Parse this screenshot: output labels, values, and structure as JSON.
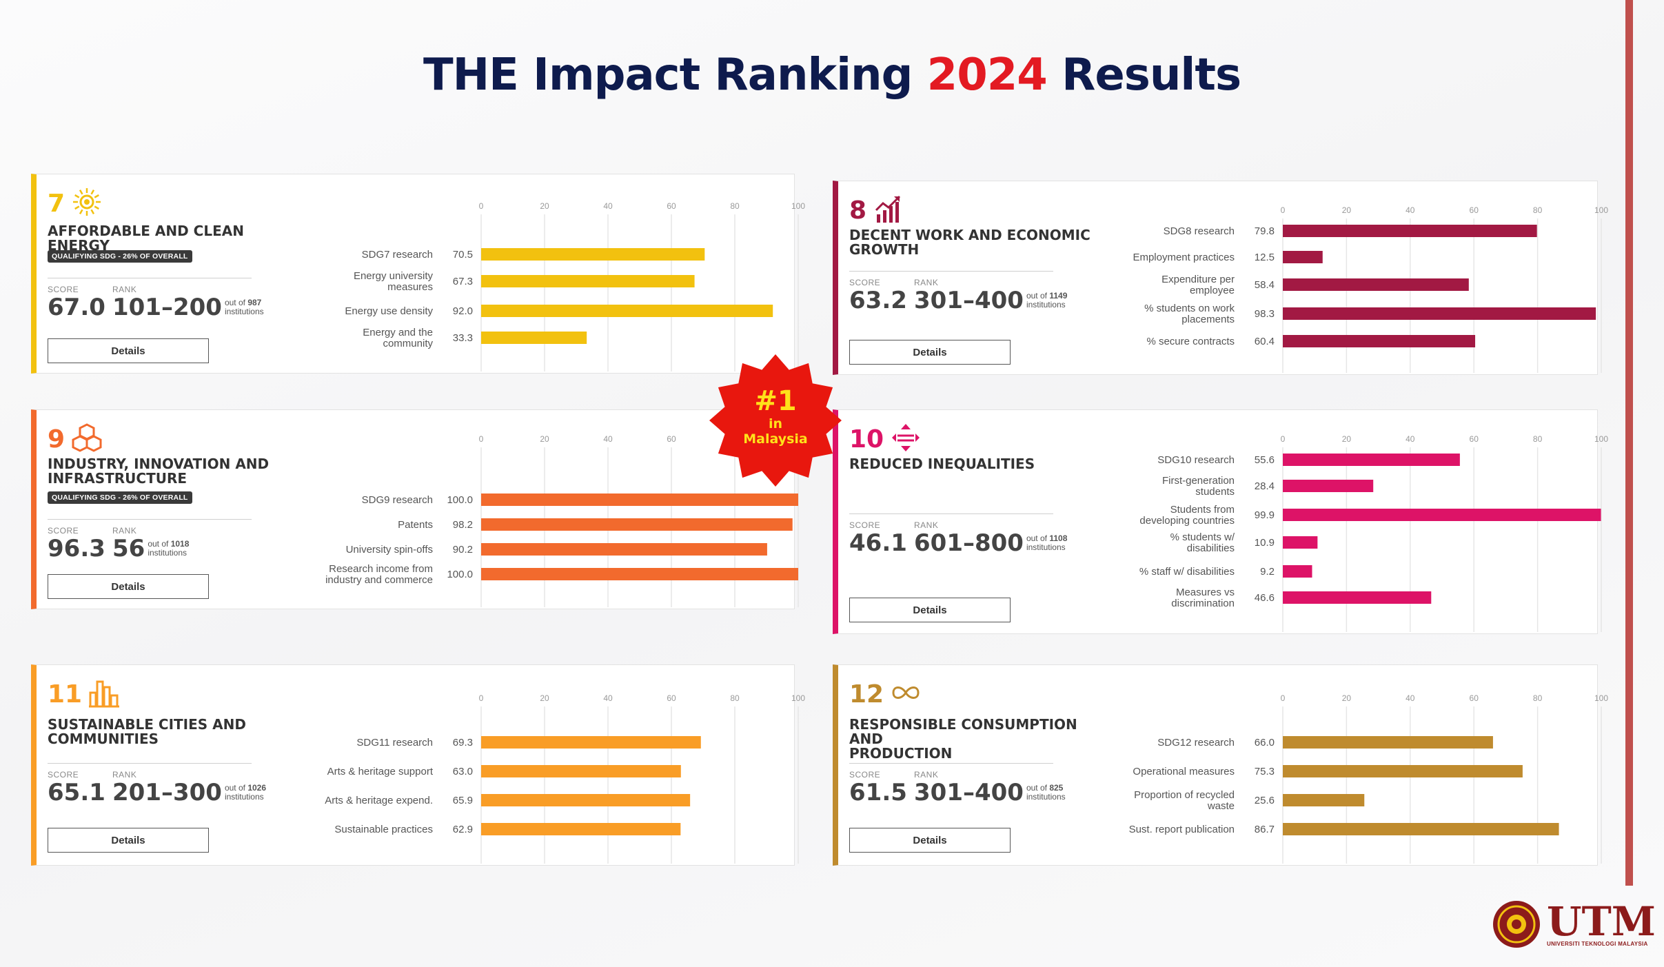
{
  "title": {
    "pre": "THE Impact Ranking ",
    "year": "2024",
    "post": " Results"
  },
  "axis_ticks": [
    "0",
    "20",
    "40",
    "60",
    "80",
    "100"
  ],
  "labels": {
    "score": "SCORE",
    "rank": "RANK",
    "details": "Details",
    "out_of": "out of",
    "institutions": "institutions"
  },
  "badge": {
    "line1": "#1",
    "line2": "in",
    "line3": "Malaysia"
  },
  "logo": {
    "text": "UTM",
    "sub": "UNIVERSITI TEKNOLOGI MALAYSIA"
  },
  "cards": [
    {
      "num": "7",
      "icon": "sun-icon",
      "color": "#f2c10f",
      "name": [
        "AFFORDABLE AND CLEAN ENERGY"
      ],
      "qualifying": "QUALIFYING SDG - 26% OF OVERALL",
      "score": "67.0",
      "rank": "101–200",
      "total": "987",
      "metrics": [
        {
          "label": [
            "SDG7 research"
          ],
          "value": 70.5,
          "text": "70.5"
        },
        {
          "label": [
            "Energy university",
            "measures"
          ],
          "value": 67.3,
          "text": "67.3"
        },
        {
          "label": [
            "Energy use density"
          ],
          "value": 92.0,
          "text": "92.0"
        },
        {
          "label": [
            "Energy and the",
            "community"
          ],
          "value": 33.3,
          "text": "33.3"
        }
      ]
    },
    {
      "num": "8",
      "icon": "growth-chart-icon",
      "color": "#a21943",
      "name": [
        "DECENT WORK AND ECONOMIC",
        "GROWTH"
      ],
      "qualifying": "",
      "score": "63.2",
      "rank": "301–400",
      "total": "1149",
      "metrics": [
        {
          "label": [
            "SDG8 research"
          ],
          "value": 79.8,
          "text": "79.8"
        },
        {
          "label": [
            "Employment practices"
          ],
          "value": 12.5,
          "text": "12.5"
        },
        {
          "label": [
            "Expenditure per",
            "employee"
          ],
          "value": 58.4,
          "text": "58.4"
        },
        {
          "label": [
            "% students on work",
            "placements"
          ],
          "value": 98.3,
          "text": "98.3"
        },
        {
          "label": [
            "% secure contracts"
          ],
          "value": 60.4,
          "text": "60.4"
        }
      ]
    },
    {
      "num": "9",
      "icon": "cubes-icon",
      "color": "#f26a2d",
      "name": [
        "INDUSTRY, INNOVATION AND",
        "INFRASTRUCTURE"
      ],
      "qualifying": "QUALIFYING SDG - 26% OF OVERALL",
      "score": "96.3",
      "rank": "56",
      "total": "1018",
      "metrics": [
        {
          "label": [
            "SDG9 research"
          ],
          "value": 100.0,
          "text": "100.0"
        },
        {
          "label": [
            "Patents"
          ],
          "value": 98.2,
          "text": "98.2"
        },
        {
          "label": [
            "University spin-offs"
          ],
          "value": 90.2,
          "text": "90.2"
        },
        {
          "label": [
            "Research income from",
            "industry and commerce"
          ],
          "value": 100.0,
          "text": "100.0"
        }
      ]
    },
    {
      "num": "10",
      "icon": "inequality-arrows-icon",
      "color": "#dd1367",
      "name": [
        "REDUCED INEQUALITIES"
      ],
      "qualifying": "",
      "score": "46.1",
      "rank": "601–800",
      "total": "1108",
      "metrics": [
        {
          "label": [
            "SDG10 research"
          ],
          "value": 55.6,
          "text": "55.6"
        },
        {
          "label": [
            "First-generation",
            "students"
          ],
          "value": 28.4,
          "text": "28.4"
        },
        {
          "label": [
            "Students from",
            "developing countries"
          ],
          "value": 99.9,
          "text": "99.9"
        },
        {
          "label": [
            "% students w/",
            "disabilities"
          ],
          "value": 10.9,
          "text": "10.9"
        },
        {
          "label": [
            "% staff w/ disabilities"
          ],
          "value": 9.2,
          "text": "9.2"
        },
        {
          "label": [
            "Measures vs",
            "discrimination"
          ],
          "value": 46.6,
          "text": "46.6"
        }
      ]
    },
    {
      "num": "11",
      "icon": "city-buildings-icon",
      "color": "#f99d26",
      "name": [
        "SUSTAINABLE CITIES AND",
        "COMMUNITIES"
      ],
      "qualifying": "",
      "score": "65.1",
      "rank": "201–300",
      "total": "1026",
      "metrics": [
        {
          "label": [
            "SDG11 research"
          ],
          "value": 69.3,
          "text": "69.3"
        },
        {
          "label": [
            "Arts & heritage support"
          ],
          "value": 63.0,
          "text": "63.0"
        },
        {
          "label": [
            "Arts & heritage expend."
          ],
          "value": 65.9,
          "text": "65.9"
        },
        {
          "label": [
            "Sustainable practices"
          ],
          "value": 62.9,
          "text": "62.9"
        }
      ]
    },
    {
      "num": "12",
      "icon": "infinity-icon",
      "color": "#bf8b2e",
      "name": [
        "RESPONSIBLE CONSUMPTION AND",
        "PRODUCTION"
      ],
      "qualifying": "",
      "score": "61.5",
      "rank": "301–400",
      "total": "825",
      "metrics": [
        {
          "label": [
            "SDG12 research"
          ],
          "value": 66.0,
          "text": "66.0"
        },
        {
          "label": [
            "Operational measures"
          ],
          "value": 75.3,
          "text": "75.3"
        },
        {
          "label": [
            "Proportion of recycled",
            "waste"
          ],
          "value": 25.6,
          "text": "25.6"
        },
        {
          "label": [
            "Sust. report publication"
          ],
          "value": 86.7,
          "text": "86.7"
        }
      ]
    }
  ]
}
